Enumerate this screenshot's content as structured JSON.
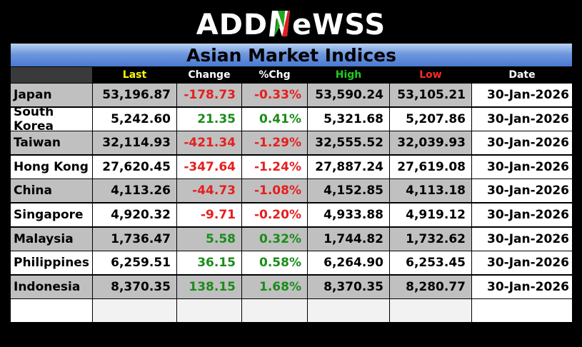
{
  "logo": {
    "text_before": "ADD",
    "text_mark": "N",
    "text_after": "eWSS"
  },
  "title": "Asian Market Indices",
  "columns": [
    "",
    "Last",
    "Change",
    "%Chg",
    "High",
    "Low",
    "Date"
  ],
  "column_colors": [
    "#000000",
    "#ffff00",
    "#ffffff",
    "#ffffff",
    "#22cc22",
    "#ff2a2a",
    "#ffffff"
  ],
  "rows": [
    {
      "name": "Japan",
      "last": "53,196.87",
      "change": "-178.73",
      "pct": "-0.33%",
      "high": "53,590.24",
      "low": "53,105.21",
      "date": "30-Jan-2026",
      "dir": "neg"
    },
    {
      "name": "South Korea",
      "last": "5,242.60",
      "change": "21.35",
      "pct": "0.41%",
      "high": "5,321.68",
      "low": "5,207.86",
      "date": "30-Jan-2026",
      "dir": "pos"
    },
    {
      "name": "Taiwan",
      "last": "32,114.93",
      "change": "-421.34",
      "pct": "-1.29%",
      "high": "32,555.52",
      "low": "32,039.93",
      "date": "30-Jan-2026",
      "dir": "neg"
    },
    {
      "name": "Hong Kong",
      "last": "27,620.45",
      "change": "-347.64",
      "pct": "-1.24%",
      "high": "27,887.24",
      "low": "27,619.08",
      "date": "30-Jan-2026",
      "dir": "neg"
    },
    {
      "name": "China",
      "last": "4,113.26",
      "change": "-44.73",
      "pct": "-1.08%",
      "high": "4,152.85",
      "low": "4,113.18",
      "date": "30-Jan-2026",
      "dir": "neg"
    },
    {
      "name": "Singapore",
      "last": "4,920.32",
      "change": "-9.71",
      "pct": "-0.20%",
      "high": "4,933.88",
      "low": "4,919.12",
      "date": "30-Jan-2026",
      "dir": "neg"
    },
    {
      "name": "Malaysia",
      "last": "1,736.47",
      "change": "5.58",
      "pct": "0.32%",
      "high": "1,744.82",
      "low": "1,732.62",
      "date": "30-Jan-2026",
      "dir": "pos"
    },
    {
      "name": "Philippines",
      "last": "6,259.51",
      "change": "36.15",
      "pct": "0.58%",
      "high": "6,264.90",
      "low": "6,253.45",
      "date": "30-Jan-2026",
      "dir": "pos"
    },
    {
      "name": "Indonesia",
      "last": "8,370.35",
      "change": "138.15",
      "pct": "1.68%",
      "high": "8,370.35",
      "low": "8,280.77",
      "date": "30-Jan-2026",
      "dir": "pos"
    }
  ]
}
